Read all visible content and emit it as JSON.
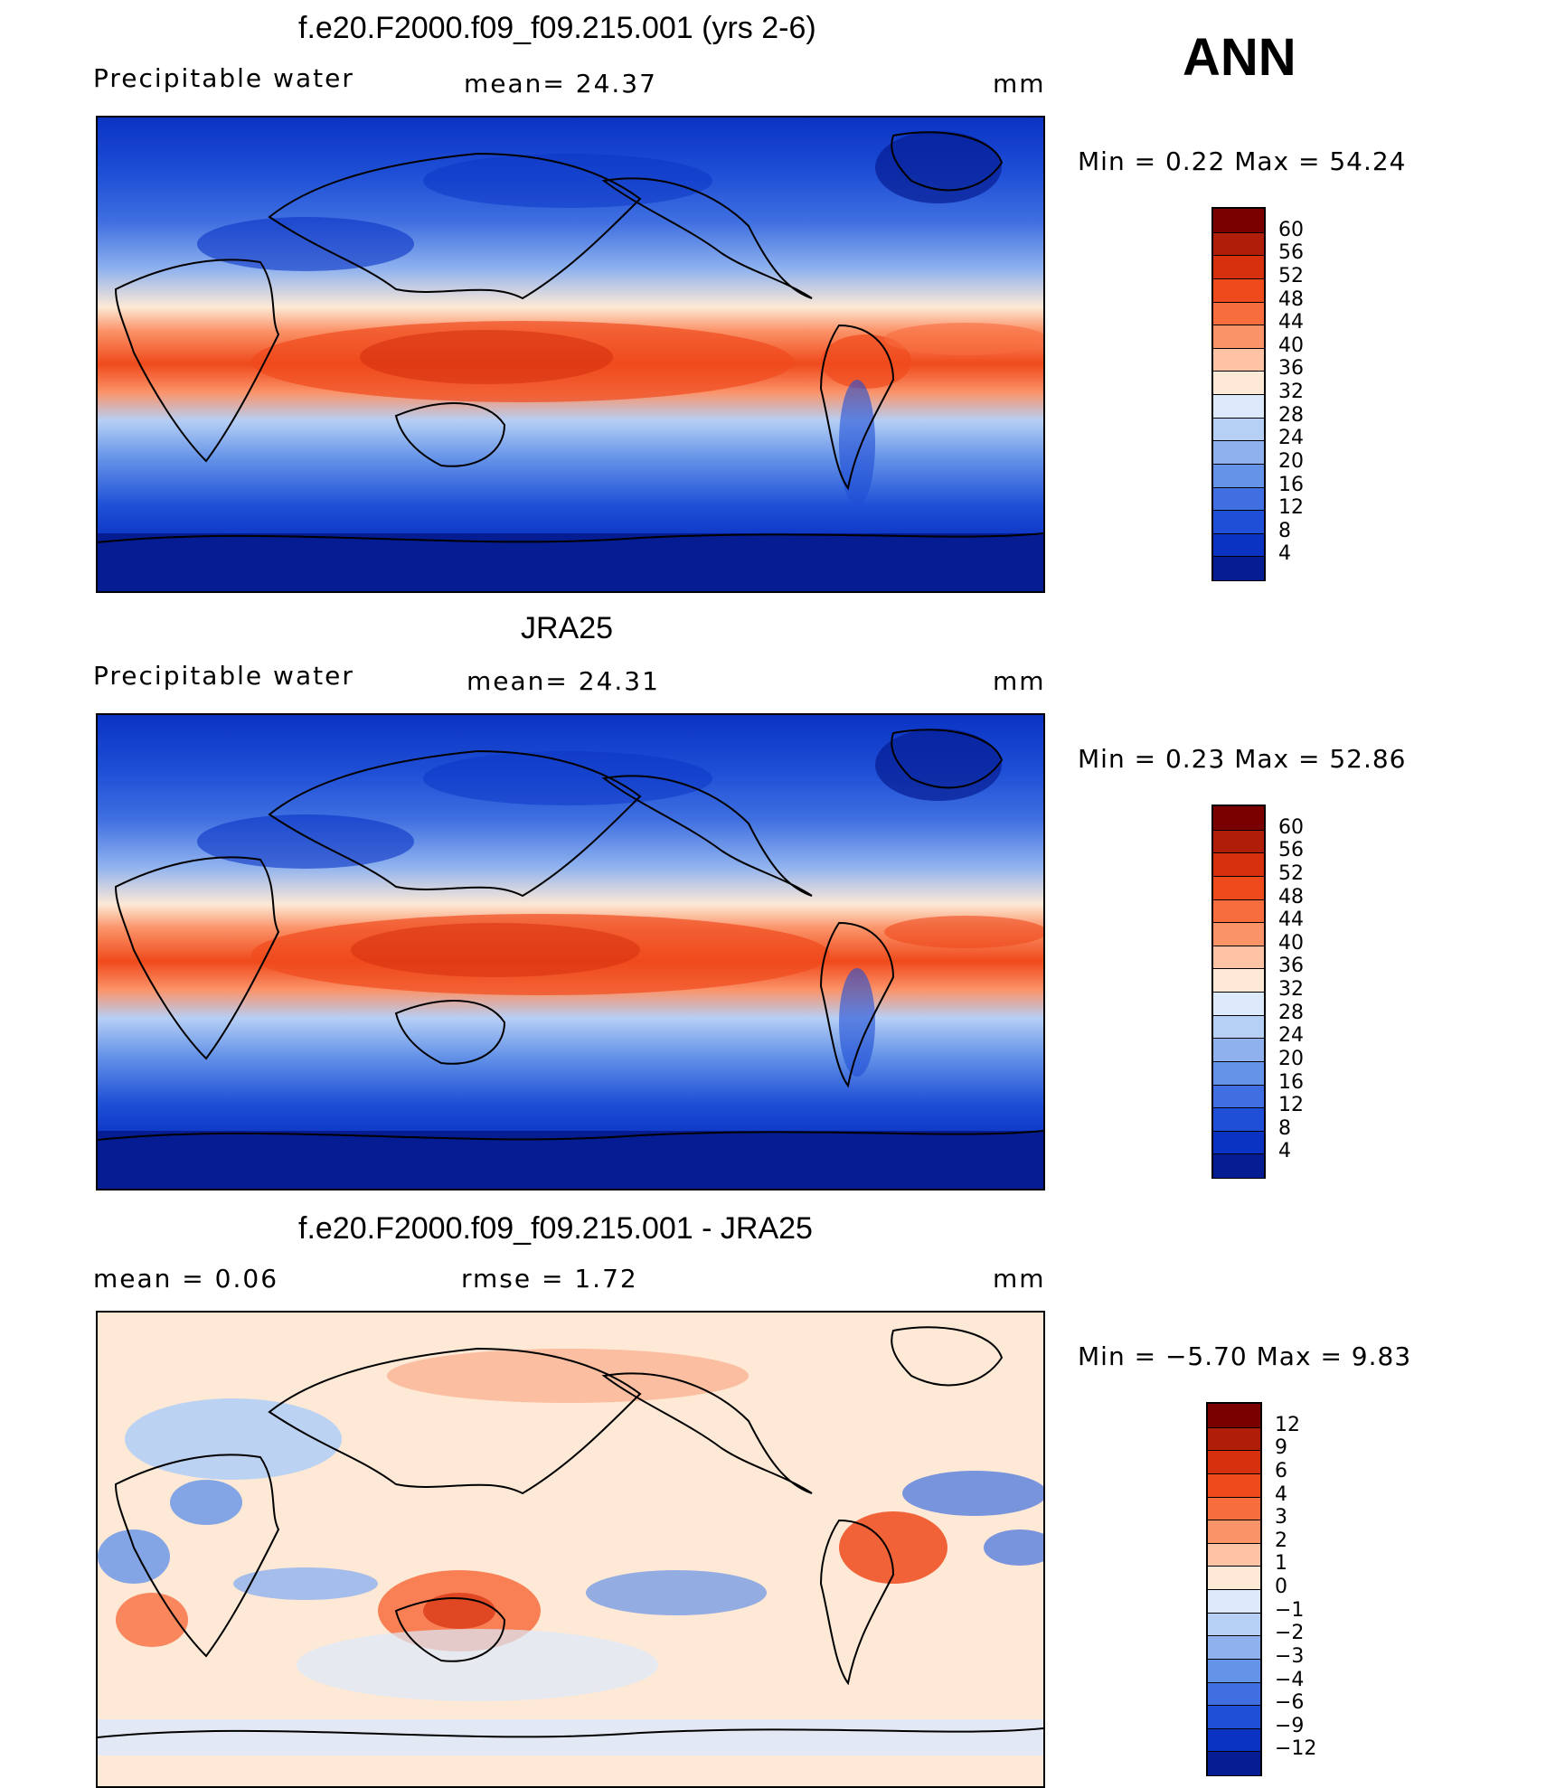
{
  "season": "ANN",
  "units_label": "mm",
  "panels": [
    {
      "title": "f.e20.F2000.f09_f09.215.001 (yrs 2-6)",
      "left_label": "Precipitable  water",
      "center_label": "mean=   24.37",
      "right_label": "mm",
      "minmax": "Min  =     0.22  Max  =    54.24",
      "kind": "absolute"
    },
    {
      "title": "JRA25",
      "left_label": "Precipitable  water",
      "center_label": "mean=   24.31",
      "right_label": "mm",
      "minmax": "Min  =     0.23  Max  =    52.86",
      "kind": "absolute"
    },
    {
      "title": "f.e20.F2000.f09_f09.215.001 - JRA25",
      "left_label": "mean  =     0.06",
      "center_label": "rmse  =     1.72",
      "right_label": "mm",
      "minmax": "Min  =   −5.70  Max  =      9.83",
      "kind": "difference"
    }
  ],
  "colorbar_abs": {
    "labels": [
      "60",
      "56",
      "52",
      "48",
      "44",
      "40",
      "36",
      "32",
      "28",
      "24",
      "20",
      "16",
      "12",
      "8",
      "4"
    ],
    "colors": [
      "#7a0000",
      "#b01e0a",
      "#d6300f",
      "#ef4a1c",
      "#f86d3e",
      "#fb9369",
      "#fdc3a4",
      "#fde9d6",
      "#dbe9fb",
      "#b5cff5",
      "#8fb2ef",
      "#6593e8",
      "#3f6fe0",
      "#1f4fd6",
      "#0a33c4",
      "#051c93"
    ]
  },
  "colorbar_diff": {
    "labels": [
      "12",
      "9",
      "6",
      "4",
      "3",
      "2",
      "1",
      "0",
      "−1",
      "−2",
      "−3",
      "−4",
      "−6",
      "−9",
      "−12"
    ],
    "colors": [
      "#7a0000",
      "#b01e0a",
      "#d6300f",
      "#ef4a1c",
      "#f86d3e",
      "#fb9369",
      "#fdc3a4",
      "#fde9d6",
      "#dbe9fb",
      "#b5cff5",
      "#8fb2ef",
      "#6593e8",
      "#3f6fe0",
      "#1f4fd6",
      "#0a33c4",
      "#051c93"
    ]
  }
}
